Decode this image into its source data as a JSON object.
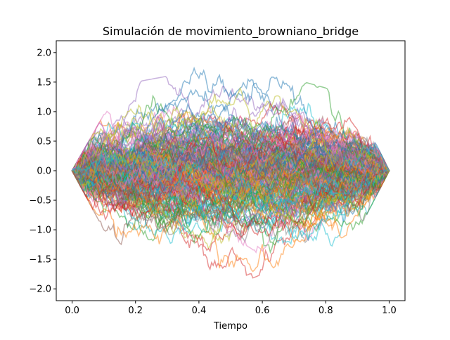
{
  "chart_data": {
    "type": "line",
    "title": "Simulación de movimiento_browniano_bridge",
    "xlabel": "Tiempo",
    "ylabel": "",
    "xlim": [
      -0.05,
      1.05
    ],
    "ylim": [
      -2.2,
      2.2
    ],
    "x_ticks": [
      0.0,
      0.2,
      0.4,
      0.6,
      0.8,
      1.0
    ],
    "x_tick_labels": [
      "0.0",
      "0.2",
      "0.4",
      "0.6",
      "0.8",
      "1.0"
    ],
    "y_ticks": [
      -2.0,
      -1.5,
      -1.0,
      -0.5,
      0.0,
      0.5,
      1.0,
      1.5,
      2.0
    ],
    "y_tick_labels": [
      "−2.0",
      "−1.5",
      "−1.0",
      "−0.5",
      "0.0",
      "0.5",
      "1.0",
      "1.5",
      "2.0"
    ],
    "grid": false,
    "legend": "none",
    "series_count": 1000,
    "start_value": 0.0,
    "end_value": 0.0,
    "line_alpha": 0.5,
    "envelope": {
      "x": [
        0.0,
        0.1,
        0.2,
        0.3,
        0.4,
        0.5,
        0.6,
        0.7,
        0.8,
        0.9,
        1.0
      ],
      "upper": [
        0.0,
        0.95,
        1.5,
        1.6,
        2.03,
        1.62,
        1.6,
        1.55,
        1.4,
        1.1,
        0.0
      ],
      "lower": [
        0.0,
        -1.0,
        -1.45,
        -1.8,
        -1.92,
        -1.97,
        -1.75,
        -1.55,
        -1.45,
        -1.05,
        0.0
      ]
    },
    "colors": [
      "#1f77b4",
      "#ff7f0e",
      "#2ca02c",
      "#d62728",
      "#9467bd",
      "#8c564b",
      "#e377c2",
      "#7f7f7f",
      "#bcbd22",
      "#17becf"
    ]
  }
}
